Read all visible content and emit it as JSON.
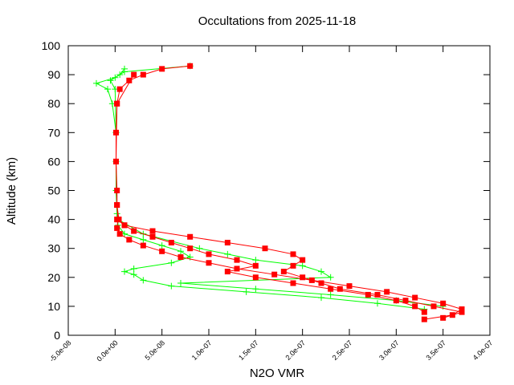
{
  "chart_data": {
    "type": "line",
    "title": "Occultations from 2025-11-18",
    "x_label": "N2O VMR",
    "y_label": "Altitude (km)",
    "xlim": [
      -5e-08,
      4e-07
    ],
    "xticks": [
      {
        "value": -5e-08,
        "label": "-5.0e-08"
      },
      {
        "value": 0,
        "label": "0.0e+00"
      },
      {
        "value": 5e-08,
        "label": "5.0e-08"
      },
      {
        "value": 1e-07,
        "label": "1.0e-07"
      },
      {
        "value": 1.5e-07,
        "label": "1.5e-07"
      },
      {
        "value": 2e-07,
        "label": "2.0e-07"
      },
      {
        "value": 2.5e-07,
        "label": "2.5e-07"
      },
      {
        "value": 3e-07,
        "label": "3.0e-07"
      },
      {
        "value": 3.5e-07,
        "label": "3.5e-07"
      },
      {
        "value": 4e-07,
        "label": "4.0e-07"
      }
    ],
    "ylim": [
      0,
      100
    ],
    "yticks": [
      0,
      10,
      20,
      30,
      40,
      50,
      60,
      70,
      80,
      90,
      100
    ],
    "series": [
      {
        "color": "#00ff00",
        "marker": "plus",
        "x": [
          3.3e-07,
          2.8e-07,
          2.2e-07,
          1.4e-07,
          6e-08,
          3e-08,
          2e-08,
          1e-08,
          2e-08,
          6e-08,
          8e-08,
          7e-08,
          5e-08,
          3e-08,
          1e-08,
          3e-09,
          2e-09,
          1e-09,
          1e-09,
          1e-09,
          -3e-09,
          -8e-09,
          -2e-08,
          0,
          1e-08,
          8e-08
        ],
        "values": [
          9,
          11,
          13,
          15,
          17,
          19,
          21,
          22,
          23,
          25,
          27,
          29,
          31,
          33,
          35,
          38,
          42,
          50,
          60,
          70,
          80,
          85,
          87,
          89,
          91,
          93
        ]
      },
      {
        "color": "#00ff00",
        "marker": "plus",
        "x": [
          3.5e-07,
          3e-07,
          2.3e-07,
          1.5e-07,
          7e-08,
          2.3e-07,
          2.2e-07,
          2e-07,
          1.5e-07,
          1.2e-07,
          9e-08,
          3e-08,
          3e-09,
          1e-09,
          1e-09,
          0,
          -5e-09,
          5e-09,
          1e-08
        ],
        "values": [
          10,
          12,
          14,
          16,
          18,
          20,
          22,
          24,
          26,
          28,
          30,
          35,
          40,
          50,
          70,
          85,
          88,
          90,
          92
        ]
      },
      {
        "color": "#ff0000",
        "marker": "square",
        "x": [
          3.3e-07,
          3.6e-07,
          3.7e-07,
          3.5e-07,
          3.2e-07,
          2.9e-07,
          2.5e-07,
          2.1e-07,
          1.7e-07,
          1.3e-07,
          1e-07,
          7e-08,
          5e-08,
          3e-08,
          1.5e-08,
          5e-09,
          2e-09,
          3e-09,
          2e-09,
          2e-09,
          1e-09,
          1e-09,
          2e-09,
          5e-09,
          1.5e-08,
          3e-08,
          5e-08,
          8e-08
        ],
        "values": [
          5.5,
          7,
          9,
          11,
          13,
          15,
          17,
          19,
          21,
          23,
          25,
          27,
          29,
          31,
          33,
          35,
          37,
          40,
          45,
          50,
          60,
          70,
          80,
          85,
          88,
          90,
          92,
          93
        ]
      },
      {
        "color": "#ff0000",
        "marker": "square",
        "x": [
          3.5e-07,
          3.7e-07,
          3.4e-07,
          3.1e-07,
          2.8e-07,
          2.4e-07,
          2.2e-07,
          2e-07,
          1.8e-07,
          1.9e-07,
          2e-07,
          1.9e-07,
          1.6e-07,
          1.2e-07,
          8e-08,
          4e-08,
          1e-08,
          2e-09
        ],
        "values": [
          6,
          8,
          10,
          12,
          14,
          16,
          18,
          20,
          22,
          24,
          26,
          28,
          30,
          32,
          34,
          36,
          38,
          40
        ]
      },
      {
        "color": "#ff0000",
        "marker": "square",
        "x": [
          3.3e-07,
          3.2e-07,
          3e-07,
          2.7e-07,
          2.3e-07,
          1.9e-07,
          1.5e-07,
          1.2e-07,
          1.5e-07,
          1.3e-07,
          1e-07,
          8e-08,
          6e-08,
          4e-08,
          2e-08,
          1e-08,
          4e-09,
          2e-09,
          1e-09,
          2e-09,
          2e-08
        ],
        "values": [
          8,
          10,
          12,
          14,
          16,
          18,
          20,
          22,
          24,
          26,
          28,
          30,
          32,
          34,
          36,
          38,
          40,
          45,
          60,
          80,
          90
        ]
      }
    ]
  }
}
